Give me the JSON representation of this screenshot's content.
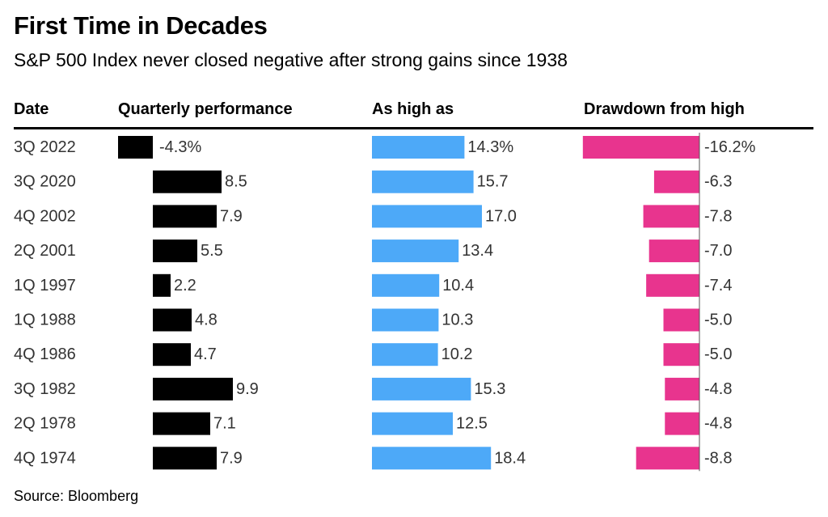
{
  "title": "First Time in Decades",
  "subtitle": "S&P 500 Index never closed negative after strong gains since 1938",
  "source": "Source: Bloomberg",
  "chart_data": {
    "type": "bar",
    "columns": [
      "Date",
      "Quarterly performance",
      "As high as",
      "Drawdown from high"
    ],
    "categories": [
      "3Q 2022",
      "3Q 2020",
      "4Q 2002",
      "2Q 2001",
      "1Q 1997",
      "1Q 1988",
      "4Q 1986",
      "3Q 1982",
      "2Q 1978",
      "4Q 1974"
    ],
    "series": [
      {
        "name": "Quarterly performance",
        "color": "#000000",
        "values": [
          -4.3,
          8.5,
          7.9,
          5.5,
          2.2,
          4.8,
          4.7,
          9.9,
          7.1,
          7.9
        ],
        "labels": [
          "-4.3%",
          "8.5",
          "7.9",
          "5.5",
          "2.2",
          "4.8",
          "4.7",
          "9.9",
          "7.1",
          "7.9"
        ]
      },
      {
        "name": "As high as",
        "color": "#4da9f8",
        "values": [
          14.3,
          15.7,
          17.0,
          13.4,
          10.4,
          10.3,
          10.2,
          15.3,
          12.5,
          18.4
        ],
        "labels": [
          "14.3%",
          "15.7",
          "17.0",
          "13.4",
          "10.4",
          "10.3",
          "10.2",
          "15.3",
          "12.5",
          "18.4"
        ]
      },
      {
        "name": "Drawdown from high",
        "color": "#e8348e",
        "values": [
          -16.2,
          -6.3,
          -7.8,
          -7.0,
          -7.4,
          -5.0,
          -5.0,
          -4.8,
          -4.8,
          -8.8
        ],
        "labels": [
          "-16.2%",
          "-6.3",
          "-7.8",
          "-7.0",
          "-7.4",
          "-5.0",
          "-5.0",
          "-4.8",
          "-4.8",
          "-8.8"
        ]
      }
    ]
  }
}
